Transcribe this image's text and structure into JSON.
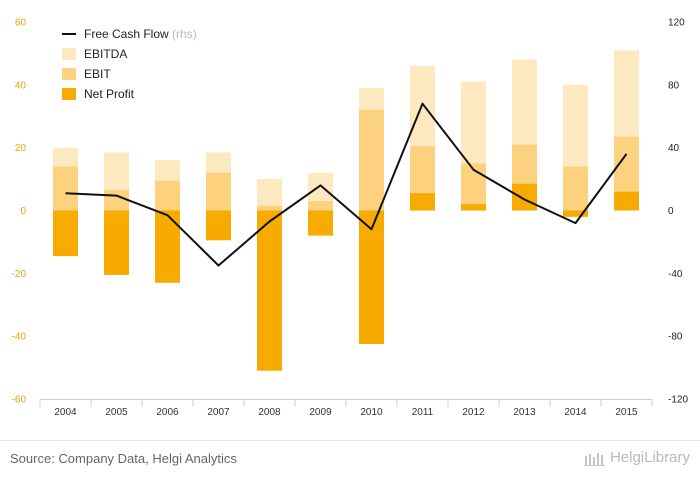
{
  "chart_data": {
    "type": "bar",
    "categories": [
      "2004",
      "2005",
      "2006",
      "2007",
      "2008",
      "2009",
      "2010",
      "2011",
      "2012",
      "2013",
      "2014",
      "2015"
    ],
    "series": [
      {
        "name": "EBITDA",
        "type": "bar",
        "axis": "left",
        "color": "#fde9c0",
        "values": [
          20,
          18.5,
          16,
          18.5,
          10,
          12,
          39,
          46,
          41,
          48,
          40,
          51
        ]
      },
      {
        "name": "EBIT",
        "type": "bar",
        "axis": "left",
        "color": "#fcd27e",
        "values": [
          14,
          6.5,
          9.5,
          12,
          1.5,
          3,
          32,
          20.5,
          15,
          21,
          14,
          23.5
        ]
      },
      {
        "name": "Net Profit",
        "type": "bar",
        "axis": "left",
        "color": "#f7aa00",
        "values": [
          -14.5,
          -20.5,
          -23,
          -9.5,
          -51,
          -8,
          -42.5,
          5.5,
          2,
          8.5,
          -2,
          6
        ]
      },
      {
        "name": "Free Cash Flow",
        "legend_suffix": "(rhs)",
        "type": "line",
        "axis": "right",
        "color": "#111111",
        "values": [
          11,
          9.5,
          -3,
          -35,
          -7,
          16,
          -12,
          68,
          26,
          7,
          -8,
          36
        ]
      }
    ],
    "left_axis": {
      "ylim": [
        -60,
        60
      ],
      "ticks": [
        -60,
        -40,
        -20,
        0,
        20,
        40,
        60
      ],
      "color": "#e8a400"
    },
    "right_axis": {
      "ylim": [
        -120,
        120
      ],
      "ticks": [
        -120,
        -80,
        -40,
        0,
        40,
        80,
        120
      ],
      "color": "#222222"
    },
    "legend": {
      "position": "top-left"
    },
    "grid": false
  },
  "footer": {
    "source": "Source: Company Data, Helgi Analytics",
    "brand": "HelgiLibrary"
  }
}
